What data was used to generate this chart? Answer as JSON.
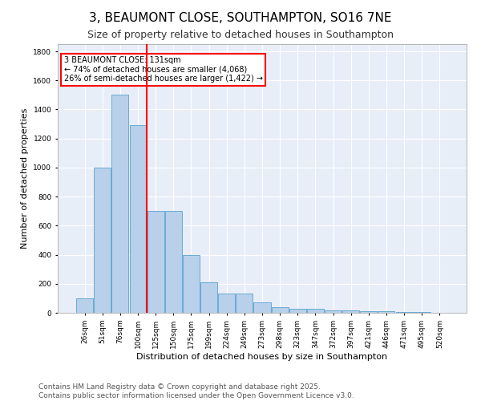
{
  "title_line1": "3, BEAUMONT CLOSE, SOUTHAMPTON, SO16 7NE",
  "title_line2": "Size of property relative to detached houses in Southampton",
  "xlabel": "Distribution of detached houses by size in Southampton",
  "ylabel": "Number of detached properties",
  "categories": [
    "26sqm",
    "51sqm",
    "76sqm",
    "100sqm",
    "125sqm",
    "150sqm",
    "175sqm",
    "199sqm",
    "224sqm",
    "249sqm",
    "273sqm",
    "298sqm",
    "323sqm",
    "347sqm",
    "372sqm",
    "397sqm",
    "421sqm",
    "446sqm",
    "471sqm",
    "495sqm",
    "520sqm"
  ],
  "values": [
    100,
    1000,
    1500,
    1290,
    700,
    700,
    400,
    210,
    130,
    130,
    70,
    40,
    30,
    30,
    15,
    15,
    10,
    10,
    5,
    5,
    0
  ],
  "bar_color": "#b8d0ea",
  "bar_edge_color": "#6aaad4",
  "vline_x": 3.5,
  "vline_color": "red",
  "annotation_text": "3 BEAUMONT CLOSE: 131sqm\n← 74% of detached houses are smaller (4,068)\n26% of semi-detached houses are larger (1,422) →",
  "annotation_box_color": "red",
  "annotation_text_color": "black",
  "ylim": [
    0,
    1850
  ],
  "yticks": [
    0,
    200,
    400,
    600,
    800,
    1000,
    1200,
    1400,
    1600,
    1800
  ],
  "background_color": "#e8eef8",
  "grid_color": "#ffffff",
  "footer_line1": "Contains HM Land Registry data © Crown copyright and database right 2025.",
  "footer_line2": "Contains public sector information licensed under the Open Government Licence v3.0.",
  "title_fontsize": 11,
  "subtitle_fontsize": 9,
  "axis_label_fontsize": 8,
  "tick_fontsize": 6.5,
  "footer_fontsize": 6.5
}
